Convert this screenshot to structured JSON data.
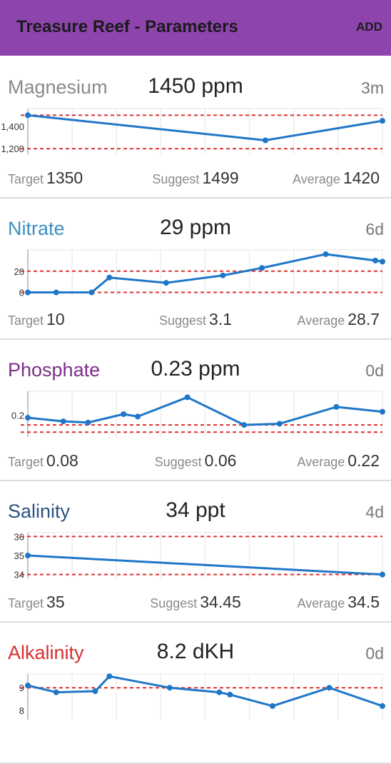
{
  "appbar": {
    "title": "Treasure Reef - Parameters",
    "add_label": "ADD",
    "color": "#8e44ad"
  },
  "stat_labels": {
    "target": "Target",
    "suggest": "Suggest",
    "average": "Average"
  },
  "cards": [
    {
      "name": "Magnesium",
      "name_color": "#8a8a8a",
      "value": "1450 ppm",
      "age": "3m",
      "target": "1350",
      "suggest": "1499",
      "average": "1420",
      "chart": {
        "ymin": 1150,
        "ymax": 1560,
        "ticks": [
          1200,
          1400
        ],
        "tick_labels": [
          "1,200",
          "1,400"
        ],
        "limits": [
          1200,
          1500
        ],
        "n_grid": 8,
        "points": [
          [
            0,
            1500
          ],
          [
            0.67,
            1275
          ],
          [
            1,
            1450
          ]
        ]
      }
    },
    {
      "name": "Nitrate",
      "name_color": "#3d8fc2",
      "value": "29 ppm",
      "age": "6d",
      "target": "10",
      "suggest": "3.1",
      "average": "28.7",
      "chart": {
        "ymin": -3,
        "ymax": 40,
        "ticks": [
          0,
          20
        ],
        "tick_labels": [
          "0",
          "20"
        ],
        "limits": [
          0,
          20
        ],
        "n_grid": 8,
        "points": [
          [
            0,
            0
          ],
          [
            0.08,
            0
          ],
          [
            0.18,
            0
          ],
          [
            0.23,
            14
          ],
          [
            0.39,
            9
          ],
          [
            0.55,
            16
          ],
          [
            0.66,
            23
          ],
          [
            0.84,
            36
          ],
          [
            0.98,
            30
          ],
          [
            1,
            29
          ]
        ]
      }
    },
    {
      "name": "Phosphate",
      "name_color": "#7d2e8a",
      "value": "0.23 ppm",
      "age": "0d",
      "target": "0.08",
      "suggest": "0.06",
      "average": "0.22",
      "chart": {
        "ymin": 0.02,
        "ymax": 0.4,
        "ticks": [
          0.2
        ],
        "tick_labels": [
          "0.2"
        ],
        "limits": [
          0.06,
          0.12
        ],
        "n_grid": 8,
        "points": [
          [
            0,
            0.18
          ],
          [
            0.1,
            0.15
          ],
          [
            0.17,
            0.14
          ],
          [
            0.27,
            0.21
          ],
          [
            0.31,
            0.19
          ],
          [
            0.45,
            0.35
          ],
          [
            0.61,
            0.12
          ],
          [
            0.71,
            0.13
          ],
          [
            0.87,
            0.27
          ],
          [
            1,
            0.23
          ]
        ]
      }
    },
    {
      "name": "Salinity",
      "name_color": "#2c5282",
      "value": "34 ppt",
      "age": "4d",
      "target": "35",
      "suggest": "34.45",
      "average": "34.5",
      "chart": {
        "ymin": 33.8,
        "ymax": 36.2,
        "ticks": [
          34,
          35,
          36
        ],
        "tick_labels": [
          "34",
          "35",
          "36"
        ],
        "limits": [
          34,
          36
        ],
        "n_grid": 8,
        "points": [
          [
            0,
            35
          ],
          [
            1,
            34
          ]
        ]
      }
    },
    {
      "name": "Alkalinity",
      "name_color": "#d63031",
      "value": "8.2 dKH",
      "age": "0d",
      "target": "",
      "suggest": "",
      "average": "",
      "chart": {
        "ymin": 7.6,
        "ymax": 9.6,
        "ticks": [
          8,
          9
        ],
        "tick_labels": [
          "8",
          "9"
        ],
        "limits": [
          9
        ],
        "n_grid": 8,
        "points": [
          [
            0,
            9.1
          ],
          [
            0.08,
            8.8
          ],
          [
            0.19,
            8.85
          ],
          [
            0.23,
            9.5
          ],
          [
            0.4,
            9
          ],
          [
            0.54,
            8.8
          ],
          [
            0.57,
            8.7
          ],
          [
            0.69,
            8.2
          ],
          [
            0.85,
            9
          ],
          [
            1,
            8.2
          ]
        ]
      }
    }
  ]
}
